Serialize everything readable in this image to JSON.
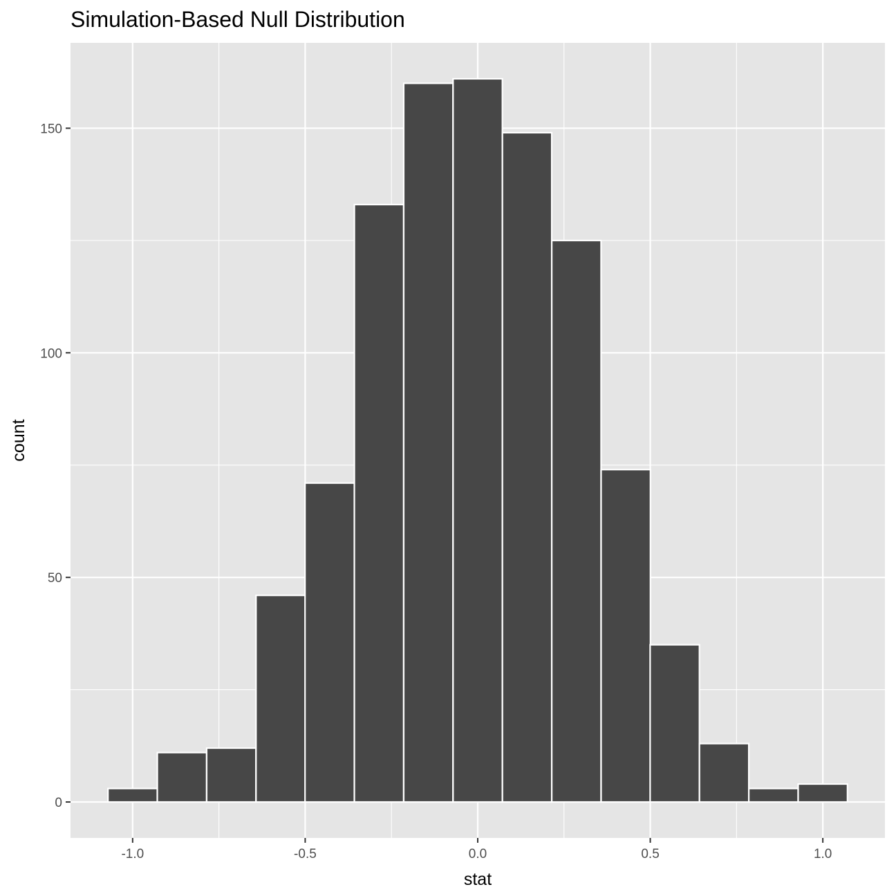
{
  "chart_data": {
    "type": "bar",
    "title": "Simulation-Based Null Distribution",
    "xlabel": "stat",
    "ylabel": "count",
    "bin_width": 0.142857,
    "x": [
      -1.0,
      -0.857,
      -0.714,
      -0.571,
      -0.429,
      -0.286,
      -0.143,
      0.0,
      0.143,
      0.286,
      0.429,
      0.571,
      0.714,
      0.857,
      1.0
    ],
    "values": [
      3,
      11,
      12,
      46,
      71,
      133,
      160,
      161,
      149,
      125,
      74,
      35,
      13,
      3,
      4
    ],
    "xlim": [
      -1.18,
      1.18
    ],
    "ylim": [
      -8,
      169
    ],
    "xticks": [
      -1.0,
      -0.5,
      0.0,
      0.5,
      1.0
    ],
    "xtick_labels": [
      "-1.0",
      "-0.5",
      "0.0",
      "0.5",
      "1.0"
    ],
    "yticks": [
      0,
      50,
      100,
      150
    ],
    "ytick_labels": [
      "0",
      "50",
      "100",
      "150"
    ],
    "grid": true,
    "colors": {
      "panel": "#e5e5e5",
      "grid": "#ffffff",
      "bar_fill": "#474747",
      "bar_outline": "#ffffff",
      "tick_text": "#4d4d4d",
      "tick_mark": "#333333"
    }
  }
}
